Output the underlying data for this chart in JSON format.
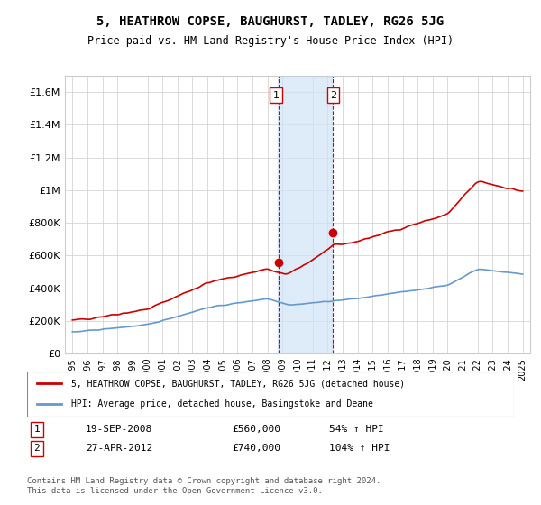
{
  "title": "5, HEATHROW COPSE, BAUGHURST, TADLEY, RG26 5JG",
  "subtitle": "Price paid vs. HM Land Registry's House Price Index (HPI)",
  "ylim": [
    0,
    1700000
  ],
  "yticks": [
    0,
    200000,
    400000,
    600000,
    800000,
    1000000,
    1200000,
    1400000,
    1600000
  ],
  "ytick_labels": [
    "£0",
    "£200K",
    "£400K",
    "£600K",
    "£800K",
    "£1M",
    "£1.2M",
    "£1.4M",
    "£1.6M"
  ],
  "xlim_start": 1995,
  "xlim_end": 2025,
  "xticks": [
    1995,
    1996,
    1997,
    1998,
    1999,
    2000,
    2001,
    2002,
    2003,
    2004,
    2005,
    2006,
    2007,
    2008,
    2009,
    2010,
    2011,
    2012,
    2013,
    2014,
    2015,
    2016,
    2017,
    2018,
    2019,
    2020,
    2021,
    2022,
    2023,
    2024,
    2025
  ],
  "red_line_color": "#cc0000",
  "blue_line_color": "#6699cc",
  "shaded_color": "#d0e4f7",
  "shaded_start": 2008.7,
  "shaded_end": 2012.3,
  "sale1_x": 2008.72,
  "sale1_y": 560000,
  "sale2_x": 2012.32,
  "sale2_y": 740000,
  "sale1_label": "1",
  "sale2_label": "2",
  "legend_red_label": "5, HEATHROW COPSE, BAUGHURST, TADLEY, RG26 5JG (detached house)",
  "legend_blue_label": "HPI: Average price, detached house, Basingstoke and Deane",
  "table_row1": [
    "1",
    "19-SEP-2008",
    "£560,000",
    "54% ↑ HPI"
  ],
  "table_row2": [
    "2",
    "27-APR-2012",
    "£740,000",
    "104% ↑ HPI"
  ],
  "footnote": "Contains HM Land Registry data © Crown copyright and database right 2024.\nThis data is licensed under the Open Government Licence v3.0.",
  "background_color": "#ffffff",
  "grid_color": "#cccccc"
}
